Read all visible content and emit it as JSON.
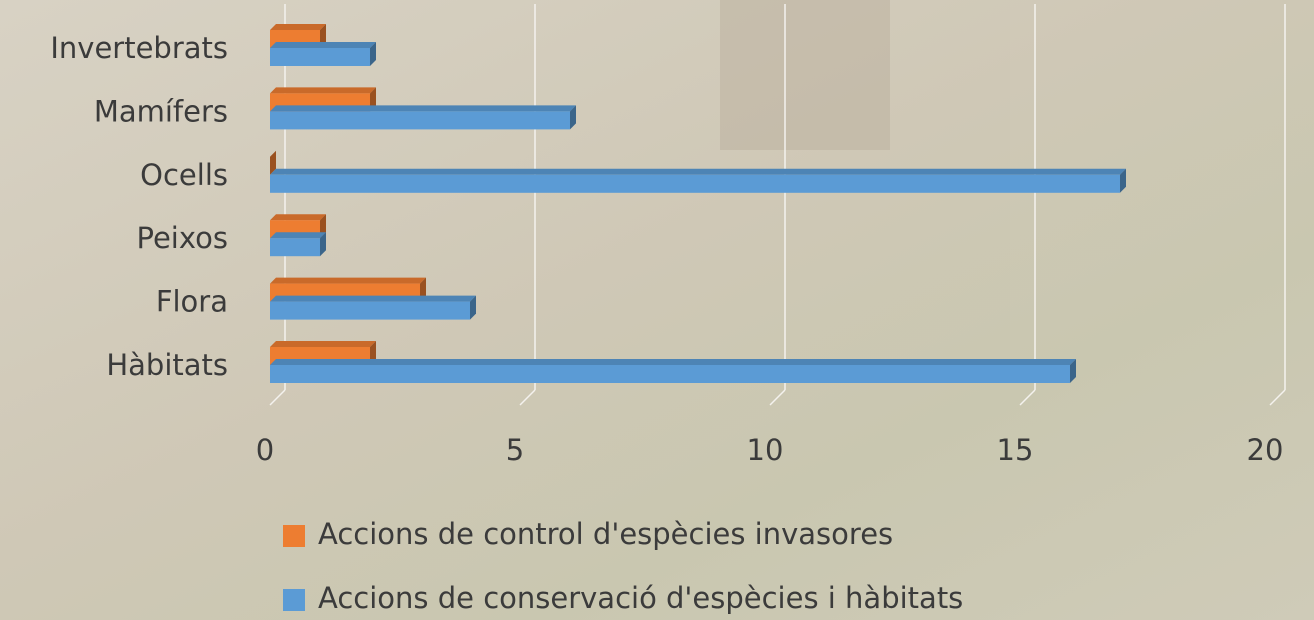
{
  "chart_data": {
    "type": "bar",
    "orientation": "horizontal",
    "categories": [
      "Invertebrats",
      "Mamífers",
      "Ocells",
      "Peixos",
      "Flora",
      "Hàbitats"
    ],
    "series": [
      {
        "name": "Accions de control d'espècies invasores",
        "color": "#ed7d31",
        "values": [
          1,
          2,
          0,
          1,
          3,
          2
        ]
      },
      {
        "name": "Accions de conservació d'espècies i hàbitats",
        "color": "#5b9bd5",
        "values": [
          2,
          6,
          17,
          1,
          4,
          16
        ]
      }
    ],
    "xlim": [
      0,
      20
    ],
    "xticks": [
      0,
      5,
      10,
      15,
      20
    ],
    "grid": true,
    "legend": "bottom"
  }
}
